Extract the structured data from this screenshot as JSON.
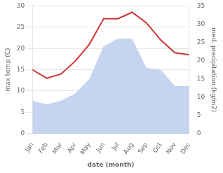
{
  "chart_data": {
    "type": "line",
    "xlabel": "date (month)",
    "ylabel": "max temp (C)",
    "y2label": "med. precipitation (kg/m2)",
    "categories": [
      "Jan",
      "Feb",
      "Mar",
      "Apr",
      "May",
      "Jun",
      "Jul",
      "Aug",
      "Sep",
      "Oct",
      "Nov",
      "Dec"
    ],
    "series": [
      {
        "type": "area",
        "color": "#c5d4f0",
        "axis": "y2",
        "values": [
          9,
          8,
          9,
          11,
          15,
          24,
          26,
          26,
          18,
          17.5,
          13,
          13
        ]
      },
      {
        "type": "line",
        "color": "#cc3333",
        "values": [
          15,
          13,
          14,
          17,
          21,
          27,
          27,
          28.5,
          26,
          22,
          19,
          18.5
        ]
      }
    ],
    "ylim": [
      0,
      30
    ],
    "yticks": [
      0,
      5,
      10,
      15,
      20,
      25,
      30
    ],
    "y2lim": [
      0,
      35
    ],
    "y2ticks": [
      0,
      5,
      10,
      15,
      20,
      25,
      30,
      35
    ],
    "grid": true
  }
}
